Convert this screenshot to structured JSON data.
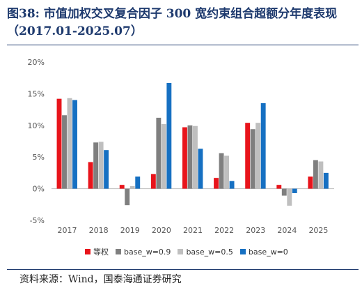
{
  "title": "图38:  市值加权交叉复合因子  300  宽约束组合超额分年度表现（2017.01-2025.07）",
  "source": "资料来源：Wind，国泰海通证券研究",
  "colors": {
    "title": "#1e3a6e",
    "series": [
      "#e8141b",
      "#7f7f7f",
      "#bfbfbf",
      "#1670c2"
    ],
    "axis_text": "#555555",
    "zero_line": "#bfbfbf"
  },
  "chart_data": {
    "type": "bar",
    "title": "",
    "xlabel": "",
    "ylabel": "",
    "categories": [
      "2017",
      "2018",
      "2019",
      "2020",
      "2021",
      "2022",
      "2023",
      "2024",
      "2025"
    ],
    "y_ticks": [
      "20%",
      "15%",
      "10%",
      "5%",
      "0%",
      "-5%"
    ],
    "y_tick_values": [
      20,
      15,
      10,
      5,
      0,
      -5
    ],
    "ylim": [
      -5,
      20
    ],
    "grid": false,
    "legend_position": "bottom",
    "series": [
      {
        "name": "等权",
        "values": [
          14.2,
          4.2,
          0.6,
          2.3,
          9.7,
          1.7,
          10.4,
          0.6,
          1.9
        ]
      },
      {
        "name": "base_w=0.9",
        "values": [
          11.6,
          7.3,
          -2.6,
          11.2,
          10.0,
          5.6,
          9.4,
          -1.1,
          4.5
        ]
      },
      {
        "name": "base_w=0.5",
        "values": [
          14.3,
          7.4,
          0.4,
          10.2,
          9.9,
          5.2,
          10.4,
          -2.7,
          4.3
        ]
      },
      {
        "name": "base_w=0",
        "values": [
          14.0,
          6.1,
          1.9,
          16.7,
          6.3,
          1.2,
          13.5,
          -0.7,
          2.5
        ]
      }
    ]
  }
}
